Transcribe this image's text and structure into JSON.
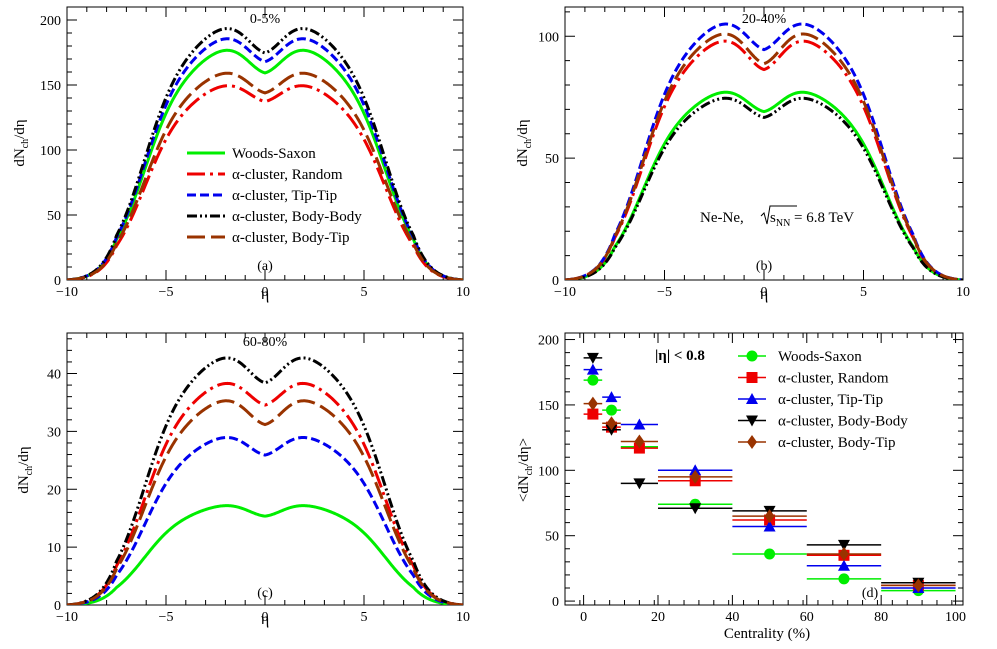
{
  "colors": {
    "woods_saxon": "#00ee00",
    "random": "#ee0000",
    "tip_tip": "#0000ee",
    "body_body": "#000000",
    "body_tip": "#993300"
  },
  "chart_data": [
    {
      "type": "line",
      "panel_label": "(a)",
      "title": "0-5%",
      "xlabel": "η",
      "ylabel": "dN_ch/dη",
      "xlim": [
        -10,
        10
      ],
      "ylim": [
        0,
        210
      ],
      "xticks": [
        -10,
        -5,
        0,
        5,
        10
      ],
      "xtick_labels": [
        "−10",
        "−5",
        "0",
        "5",
        "10"
      ],
      "yticks": [
        0,
        50,
        100,
        150,
        200
      ],
      "legend": {
        "position": "center-left",
        "entries": [
          "Woods-Saxon",
          "α-cluster, Random",
          "α-cluster, Tip-Tip",
          "α-cluster, Body-Body",
          "α-cluster, Body-Tip"
        ]
      },
      "series": [
        {
          "name": "Woods-Saxon",
          "key": "woods_saxon",
          "dash": "solid",
          "peak": 180,
          "dip": 166
        },
        {
          "name": "α-cluster, Random",
          "key": "random",
          "dash": "longdashdot",
          "peak": 152,
          "dip": 143
        },
        {
          "name": "α-cluster, Tip-Tip",
          "key": "tip_tip",
          "dash": "dash",
          "peak": 189,
          "dip": 175
        },
        {
          "name": "α-cluster, Body-Body",
          "key": "body_body",
          "dash": "dashdotdot",
          "peak": 197,
          "dip": 182
        },
        {
          "name": "α-cluster, Body-Tip",
          "key": "body_tip",
          "dash": "longdash",
          "peak": 162,
          "dip": 150
        }
      ]
    },
    {
      "type": "line",
      "panel_label": "(b)",
      "title": "20-40%",
      "annotation": "Ne-Ne, √s_NN = 6.8 TeV",
      "annotation_parts": {
        "prefix": "Ne-Ne, ",
        "s": "s",
        "sub": "NN",
        "suffix": " = 6.8 TeV"
      },
      "xlabel": "η",
      "ylabel": "dN_ch/dη",
      "xlim": [
        -10,
        10
      ],
      "ylim": [
        0,
        112
      ],
      "xticks": [
        -10,
        -5,
        0,
        5,
        10
      ],
      "xtick_labels": [
        "−10",
        "−5",
        "0",
        "5",
        "10"
      ],
      "yticks": [
        0,
        50,
        100
      ],
      "series": [
        {
          "name": "Woods-Saxon",
          "key": "woods_saxon",
          "dash": "solid",
          "peak": 78.5,
          "dip": 72
        },
        {
          "name": "α-cluster, Random",
          "key": "random",
          "dash": "longdashdot",
          "peak": 100,
          "dip": 90
        },
        {
          "name": "α-cluster, Tip-Tip",
          "key": "tip_tip",
          "dash": "dash",
          "peak": 107,
          "dip": 98.5
        },
        {
          "name": "α-cluster, Body-Body",
          "key": "body_body",
          "dash": "dashdotdot",
          "peak": 76,
          "dip": 69.5
        },
        {
          "name": "α-cluster, Body-Tip",
          "key": "body_tip",
          "dash": "longdash",
          "peak": 103,
          "dip": 92.5
        }
      ]
    },
    {
      "type": "line",
      "panel_label": "(c)",
      "title": "60-80%",
      "xlabel": "η",
      "ylabel": "dN_ch/dη",
      "xlim": [
        -10,
        10
      ],
      "ylim": [
        0,
        47
      ],
      "xticks": [
        -10,
        -5,
        0,
        5,
        10
      ],
      "xtick_labels": [
        "−10",
        "−5",
        "0",
        "5",
        "10"
      ],
      "yticks": [
        0,
        10,
        20,
        30,
        40
      ],
      "series": [
        {
          "name": "Woods-Saxon",
          "key": "woods_saxon",
          "dash": "solid",
          "peak": 17.5,
          "dip": 16
        },
        {
          "name": "α-cluster, Random",
          "key": "random",
          "dash": "longdashdot",
          "peak": 39,
          "dip": 36
        },
        {
          "name": "α-cluster, Tip-Tip",
          "key": "tip_tip",
          "dash": "dash",
          "peak": 29.5,
          "dip": 27
        },
        {
          "name": "α-cluster, Body-Body",
          "key": "body_body",
          "dash": "dashdotdot",
          "peak": 43.5,
          "dip": 40
        },
        {
          "name": "α-cluster, Body-Tip",
          "key": "body_tip",
          "dash": "longdash",
          "peak": 36,
          "dip": 32.5
        }
      ]
    },
    {
      "type": "scatter",
      "panel_label": "(d)",
      "annotation": "|η| < 0.8",
      "xlabel": "Centrality (%)",
      "ylabel": "<dN_ch/dη>",
      "xlim": [
        -5,
        102
      ],
      "ylim": [
        -3,
        205
      ],
      "xticks": [
        0,
        20,
        40,
        60,
        80,
        100
      ],
      "yticks": [
        0,
        50,
        100,
        150,
        200
      ],
      "legend": {
        "position": "top-right",
        "entries": [
          "Woods-Saxon",
          "α-cluster, Random",
          "α-cluster, Tip-Tip",
          "α-cluster, Body-Body",
          "α-cluster, Body-Tip"
        ]
      },
      "bins": [
        [
          0,
          5
        ],
        [
          5,
          10
        ],
        [
          10,
          20
        ],
        [
          20,
          40
        ],
        [
          40,
          60
        ],
        [
          60,
          80
        ],
        [
          80,
          100
        ]
      ],
      "series": [
        {
          "name": "Woods-Saxon",
          "key": "woods_saxon",
          "marker": "circle",
          "values": [
            169,
            146,
            118,
            74,
            36,
            17,
            8
          ]
        },
        {
          "name": "α-cluster, Random",
          "key": "random",
          "marker": "square",
          "values": [
            143,
            133,
            117,
            92,
            62,
            35,
            12
          ]
        },
        {
          "name": "α-cluster, Tip-Tip",
          "key": "tip_tip",
          "marker": "triangle-up",
          "values": [
            177,
            156,
            135,
            100,
            57,
            27,
            10
          ]
        },
        {
          "name": "α-cluster, Body-Body",
          "key": "body_body",
          "marker": "triangle-down",
          "values": [
            186,
            131,
            90,
            71,
            69,
            43,
            14
          ]
        },
        {
          "name": "α-cluster, Body-Tip",
          "key": "body_tip",
          "marker": "diamond",
          "values": [
            151,
            136,
            122,
            95,
            65,
            36,
            12
          ]
        }
      ]
    }
  ]
}
